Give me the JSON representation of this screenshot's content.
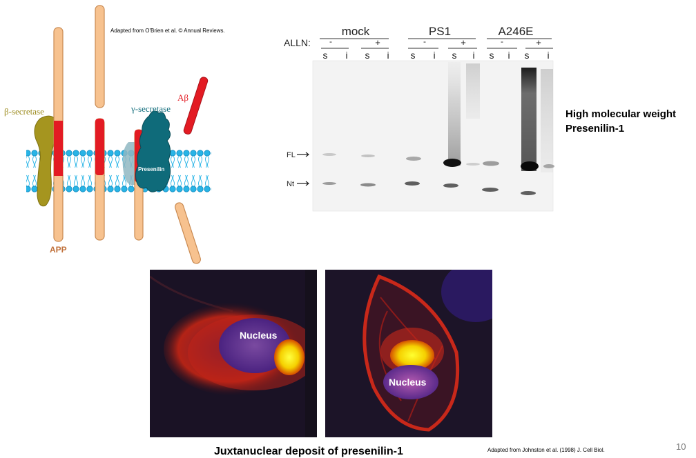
{
  "credits": {
    "top": "Adapted from O'Brien et al. © Annual Reviews.",
    "bottom": "Adapted from Johnston et al. (1998) J. Cell Biol."
  },
  "slide_number": "10",
  "membrane_diagram": {
    "beta_secretase": "β-secretase",
    "gamma_secretase": "γ-secretase",
    "presenilin": "Presenilin",
    "abeta": "Aβ",
    "app": "APP",
    "colors": {
      "app": "#f7c28f",
      "app_stroke": "#c98a52",
      "red_segment": "#e31b23",
      "beta_secretase": "#9b8a1c",
      "gamma_secretase": "#0f6b7a",
      "membrane": "#28b4e6"
    }
  },
  "western_blot": {
    "treatment_label": "ALLN:",
    "groups": [
      "mock",
      "PS1",
      "A246E"
    ],
    "alln_signs": [
      "-",
      "+",
      "-",
      "+",
      "-",
      "+"
    ],
    "lanes": [
      "s",
      "i",
      "s",
      "i",
      "s",
      "i",
      "s",
      "i",
      "s",
      "i",
      "s",
      "i"
    ],
    "band_labels": {
      "full_length": "FL",
      "n_terminal": "Nt"
    },
    "high_mw_label": [
      "High molecular weight",
      "Presenilin-1"
    ]
  },
  "micrographs": {
    "nucleus_label": "Nucleus",
    "caption": "Juxtanuclear deposit of presenilin-1"
  }
}
